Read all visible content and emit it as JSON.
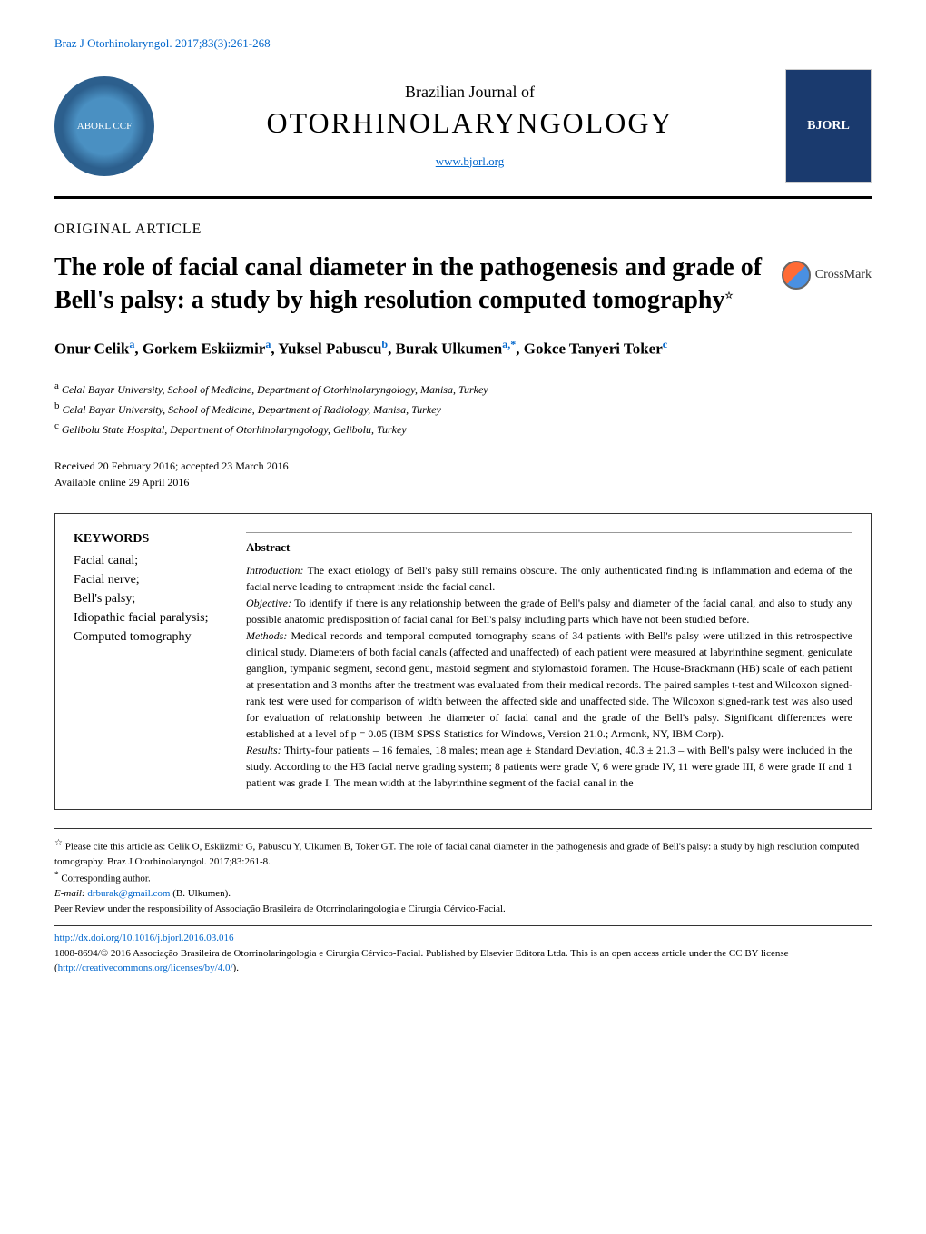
{
  "citation": "Braz J Otorhinolaryngol. 2017;83(3):261-268",
  "logo_text": "ABORL CCF",
  "journal": {
    "subtitle": "Brazilian Journal of",
    "title": "OTORHINOLARYNGOLOGY",
    "url": "www.bjorl.org",
    "cover_text": "BJORL"
  },
  "article_type": "ORIGINAL ARTICLE",
  "title": "The role of facial canal diameter in the pathogenesis and grade of Bell's palsy: a study by high resolution computed tomography",
  "title_star": "☆",
  "crossmark_label": "CrossMark",
  "authors_html": "Onur Celik<sup>a</sup>, Gorkem Eskiizmir<sup>a</sup>, Yuksel Pabuscu<sup>b</sup>, Burak Ulkumen<sup>a,*</sup>, Gokce Tanyeri Toker<sup>c</sup>",
  "affiliations": {
    "a": "Celal Bayar University, School of Medicine, Department of Otorhinolaryngology, Manisa, Turkey",
    "b": "Celal Bayar University, School of Medicine, Department of Radiology, Manisa, Turkey",
    "c": "Gelibolu State Hospital, Department of Otorhinolaryngology, Gelibolu, Turkey"
  },
  "dates": {
    "received": "Received 20 February 2016; accepted 23 March 2016",
    "online": "Available online 29 April 2016"
  },
  "keywords": {
    "title": "KEYWORDS",
    "items": "Facial canal;\nFacial nerve;\nBell's palsy;\nIdiopathic facial paralysis;\nComputed tomography"
  },
  "abstract": {
    "title": "Abstract",
    "intro_label": "Introduction:",
    "intro_text": " The exact etiology of Bell's palsy still remains obscure. The only authenticated finding is inflammation and edema of the facial nerve leading to entrapment inside the facial canal.",
    "objective_label": "Objective:",
    "objective_text": " To identify if there is any relationship between the grade of Bell's palsy and diameter of the facial canal, and also to study any possible anatomic predisposition of facial canal for Bell's palsy including parts which have not been studied before.",
    "methods_label": "Methods:",
    "methods_text": " Medical records and temporal computed tomography scans of 34 patients with Bell's palsy were utilized in this retrospective clinical study. Diameters of both facial canals (affected and unaffected) of each patient were measured at labyrinthine segment, geniculate ganglion, tympanic segment, second genu, mastoid segment and stylomastoid foramen. The House-Brackmann (HB) scale of each patient at presentation and 3 months after the treatment was evaluated from their medical records. The paired samples t-test and Wilcoxon signed-rank test were used for comparison of width between the affected side and unaffected side. The Wilcoxon signed-rank test was also used for evaluation of relationship between the diameter of facial canal and the grade of the Bell's palsy. Significant differences were established at a level of p = 0.05 (IBM SPSS Statistics for Windows, Version 21.0.; Armonk, NY, IBM Corp).",
    "results_label": "Results:",
    "results_text": " Thirty-four patients – 16 females, 18 males; mean age ± Standard Deviation, 40.3 ± 21.3 – with Bell's palsy were included in the study. According to the HB facial nerve grading system; 8 patients were grade V, 6 were grade IV, 11 were grade III, 8 were grade II and 1 patient was grade I. The mean width at the labyrinthine segment of the facial canal in the"
  },
  "footer": {
    "cite_star": "☆",
    "cite_text": " Please cite this article as: Celik O, Eskiizmir G, Pabuscu Y, Ulkumen B, Toker GT. The role of facial canal diameter in the pathogenesis and grade of Bell's palsy: a study by high resolution computed tomography. Braz J Otorhinolaryngol. 2017;83:261-8.",
    "corresponding_star": "*",
    "corresponding_text": " Corresponding author.",
    "email_label": "E-mail:",
    "email": "drburak@gmail.com",
    "email_name": " (B. Ulkumen).",
    "peer_review": "Peer Review under the responsibility of Associação Brasileira de Otorrinolaringologia e Cirurgia Cérvico-Facial.",
    "doi": "http://dx.doi.org/10.1016/j.bjorl.2016.03.016",
    "copyright": "1808-8694/© 2016 Associação Brasileira de Otorrinolaringologia e Cirurgia Cérvico-Facial. Published by Elsevier Editora Ltda. This is an open access article under the CC BY license (",
    "cc_url": "http://creativecommons.org/licenses/by/4.0/",
    "copyright_end": ")."
  }
}
